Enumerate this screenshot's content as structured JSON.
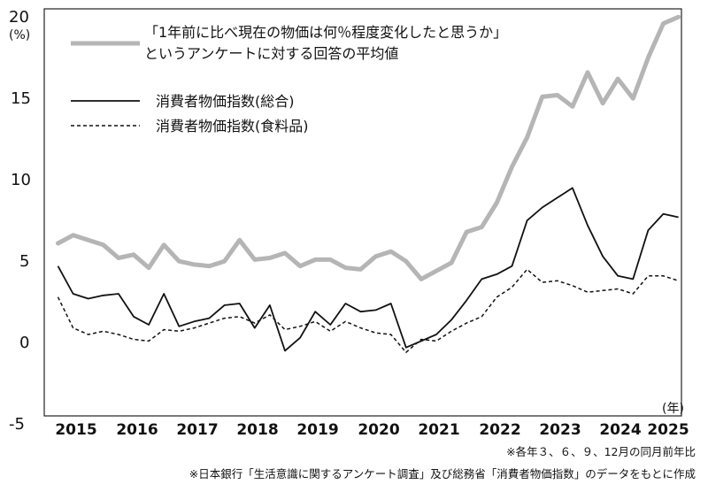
{
  "chart_data": {
    "type": "line",
    "ylim": [
      -5,
      20
    ],
    "yticks": [
      "20",
      "15",
      "10",
      "5",
      "0",
      "-5"
    ],
    "ylabel": "(%)",
    "xunit": "(年)",
    "xticks": [
      "2015",
      "2016",
      "2017",
      "2018",
      "2019",
      "2020",
      "2021",
      "2022",
      "2023",
      "2024",
      "2025"
    ],
    "x_start_year": 2014.7,
    "x_step_years": 0.25,
    "series": [
      {
        "key": "survey",
        "name_line1": "「1年前に比べ現在の物価は何％程度変化したと思うか」",
        "name_line2": "というアンケートに対する回答の平均値",
        "color": "#b5b5b5",
        "style": "thick",
        "values": [
          5.6,
          6.1,
          5.8,
          5.5,
          4.7,
          4.9,
          4.1,
          5.5,
          4.5,
          4.3,
          4.2,
          4.5,
          5.8,
          4.6,
          4.7,
          5.0,
          4.2,
          4.6,
          4.6,
          4.1,
          4.0,
          4.8,
          5.1,
          4.5,
          3.4,
          3.9,
          4.4,
          6.3,
          6.6,
          8.1,
          10.3,
          12.1,
          14.6,
          14.7,
          14.0,
          16.1,
          14.2,
          15.7,
          14.5,
          17.0,
          19.1,
          19.5
        ]
      },
      {
        "key": "cpi",
        "name": "消費者物価指数(総合)",
        "color": "#111111",
        "style": "solid",
        "values": [
          4.2,
          2.5,
          2.2,
          2.4,
          2.5,
          1.1,
          0.6,
          2.5,
          0.5,
          0.8,
          1.0,
          1.8,
          1.9,
          0.4,
          1.8,
          -1.0,
          -0.2,
          1.4,
          0.6,
          1.9,
          1.4,
          1.5,
          1.9,
          -0.8,
          -0.4,
          0.0,
          0.9,
          2.1,
          3.4,
          3.7,
          4.2,
          7.0,
          7.8,
          8.4,
          9.0,
          6.7,
          4.8,
          3.6,
          3.4,
          6.4,
          7.4,
          7.2
        ]
      },
      {
        "key": "cpi_food",
        "name": "消費者物価指数(食料品)",
        "color": "#111111",
        "style": "dashed",
        "values": [
          2.3,
          0.4,
          0.0,
          0.2,
          0.0,
          -0.3,
          -0.4,
          0.3,
          0.2,
          0.4,
          0.7,
          1.0,
          1.1,
          0.7,
          1.2,
          0.3,
          0.5,
          0.8,
          0.2,
          0.8,
          0.4,
          0.1,
          0.0,
          -1.1,
          -0.3,
          -0.4,
          0.2,
          0.7,
          1.1,
          2.3,
          2.9,
          4.0,
          3.2,
          3.3,
          3.0,
          2.6,
          2.7,
          2.8,
          2.5,
          3.6,
          3.6,
          3.3
        ]
      }
    ],
    "notes": [
      "※各年３、６、９、12月の同月前年比",
      "※日本銀行「生活意識に関するアンケート調査」及び総務省「消費者物価指数」のデータをもとに作成"
    ]
  }
}
